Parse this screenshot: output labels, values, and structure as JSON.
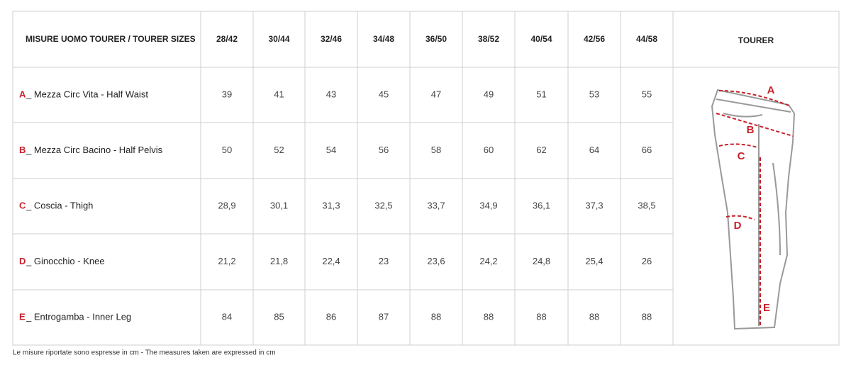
{
  "table": {
    "corner": "MISURE UOMO TOURER / TOURER SIZES",
    "sizes": [
      "28/42",
      "30/44",
      "32/46",
      "34/48",
      "36/50",
      "38/52",
      "40/54",
      "42/56",
      "44/58"
    ],
    "model": "TOURER",
    "rows": [
      {
        "letter": "A",
        "label": "_ Mezza Circ Vita - Half Waist",
        "values": [
          "39",
          "41",
          "43",
          "45",
          "47",
          "49",
          "51",
          "53",
          "55"
        ]
      },
      {
        "letter": "B",
        "label": "_ Mezza Circ Bacino - Half Pelvis",
        "values": [
          "50",
          "52",
          "54",
          "56",
          "58",
          "60",
          "62",
          "64",
          "66"
        ]
      },
      {
        "letter": "C",
        "label": "_ Coscia - Thigh",
        "values": [
          "28,9",
          "30,1",
          "31,3",
          "32,5",
          "33,7",
          "34,9",
          "36,1",
          "37,3",
          "38,5"
        ]
      },
      {
        "letter": "D",
        "label": "_ Ginocchio - Knee",
        "values": [
          "21,2",
          "21,8",
          "22,4",
          "23",
          "23,6",
          "24,2",
          "24,8",
          "25,4",
          "26"
        ]
      },
      {
        "letter": "E",
        "label": "_ Entrogamba - Inner Leg",
        "values": [
          "84",
          "85",
          "86",
          "87",
          "88",
          "88",
          "88",
          "88",
          "88"
        ]
      }
    ]
  },
  "diagram": {
    "labels": [
      "A",
      "B",
      "C",
      "D",
      "E"
    ]
  },
  "footer": "Le misure riportate sono espresse in cm - The measures taken are expressed in cm"
}
